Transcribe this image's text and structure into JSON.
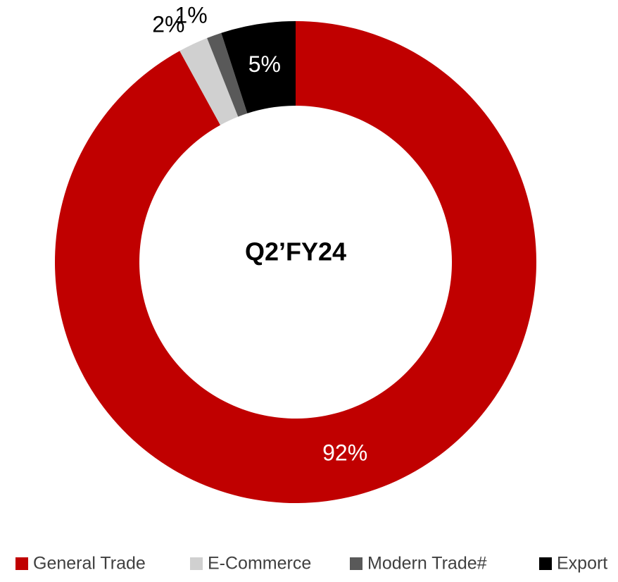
{
  "chart_data": {
    "type": "donut",
    "center_text": "Q2’FY24",
    "categories": [
      "General Trade",
      "E-Commerce",
      "Modern Trade#",
      "Export"
    ],
    "values": [
      92,
      2,
      1,
      5
    ],
    "value_labels": [
      "92%",
      "2%",
      "1%",
      "5%"
    ],
    "colors": [
      "#c00000",
      "#d0d0d0",
      "#595959",
      "#000000"
    ],
    "legend": "bottom"
  }
}
